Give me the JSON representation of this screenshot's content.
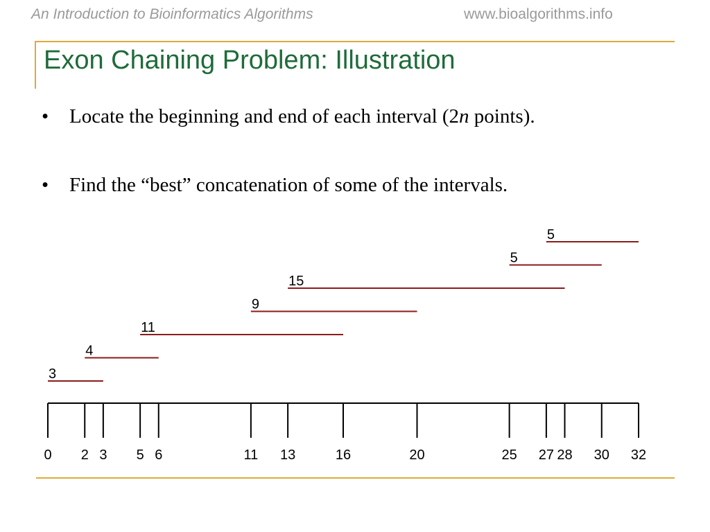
{
  "header": {
    "course_title": "An Introduction to Bioinformatics Algorithms",
    "website": "www.bioalgorithms.info"
  },
  "slide": {
    "title": "Exon Chaining Problem: Illustration",
    "bullets": [
      {
        "marker": "•",
        "text_before": "Locate the beginning and end of each interval (2",
        "text_italic": "n",
        "text_after": " points)."
      },
      {
        "marker": "•",
        "text_before": "Find the “best” concatenation of some of the intervals.",
        "text_italic": "",
        "text_after": ""
      }
    ]
  },
  "colors": {
    "header_text": "#9a9a9a",
    "title": "#1f6b3a",
    "rule": "#e0a93a",
    "interval": "#8b1a1a",
    "axis": "#000000"
  },
  "chart_data": {
    "type": "interval_diagram",
    "axis_ticks": [
      0,
      2,
      3,
      5,
      6,
      11,
      13,
      16,
      20,
      25,
      27,
      28,
      30,
      32
    ],
    "intervals": [
      {
        "start": 0,
        "end": 3,
        "weight": 3
      },
      {
        "start": 2,
        "end": 6,
        "weight": 4
      },
      {
        "start": 5,
        "end": 16,
        "weight": 11
      },
      {
        "start": 11,
        "end": 20,
        "weight": 9
      },
      {
        "start": 13,
        "end": 28,
        "weight": 15
      },
      {
        "start": 25,
        "end": 30,
        "weight": 5
      },
      {
        "start": 27,
        "end": 32,
        "weight": 5
      }
    ]
  }
}
